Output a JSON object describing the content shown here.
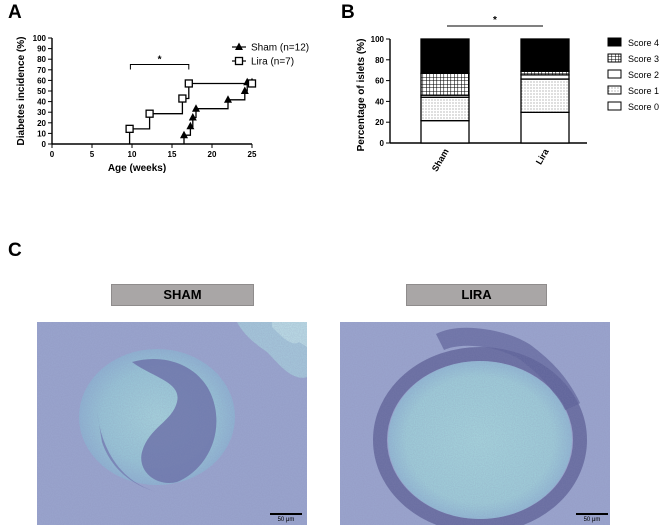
{
  "panels": {
    "a": {
      "letter": "A"
    },
    "b": {
      "letter": "B"
    },
    "c": {
      "letter": "C"
    }
  },
  "chart_data": [
    {
      "type": "line",
      "subtype": "step",
      "title": "",
      "xlabel": "Age (weeks)",
      "ylabel": "Diabetes incidence (%)",
      "xlim": [
        0,
        25
      ],
      "ylim": [
        0,
        100
      ],
      "x_ticks": [
        0,
        5,
        10,
        15,
        20,
        25
      ],
      "y_ticks": [
        0,
        10,
        20,
        30,
        40,
        50,
        60,
        70,
        80,
        90,
        100
      ],
      "legend_position": "top-right",
      "significance": "*",
      "series": [
        {
          "name": "Sham (n=12)",
          "marker": "triangle",
          "steps": [
            [
              16.5,
              0
            ],
            [
              16.5,
              8.3
            ],
            [
              17.3,
              16.7
            ],
            [
              17.6,
              25
            ],
            [
              18,
              33.3
            ],
            [
              22,
              41.7
            ],
            [
              24.1,
              50
            ],
            [
              24.4,
              58.3
            ],
            [
              25,
              58.3
            ]
          ]
        },
        {
          "name": "Lira (n=7)",
          "marker": "square",
          "steps": [
            [
              9.7,
              0
            ],
            [
              9.7,
              14.3
            ],
            [
              12.2,
              28.6
            ],
            [
              16.3,
              42.9
            ],
            [
              17.1,
              57.1
            ],
            [
              25,
              57.1
            ]
          ]
        }
      ]
    },
    {
      "type": "bar",
      "subtype": "stacked-100",
      "title": "",
      "xlabel": "",
      "ylabel": "Percentage of islets (%)",
      "ylim": [
        0,
        100
      ],
      "y_ticks": [
        0,
        20,
        40,
        60,
        80,
        100
      ],
      "categories": [
        "Sham",
        "Lira"
      ],
      "legend_position": "right",
      "significance": "*",
      "series": [
        {
          "name": "Score 0",
          "pattern": "white",
          "values": [
            21.5,
            29.5
          ]
        },
        {
          "name": "Score 1",
          "pattern": "dots",
          "values": [
            22.5,
            32
          ]
        },
        {
          "name": "Score 2",
          "pattern": "white",
          "values": [
            2,
            4
          ]
        },
        {
          "name": "Score 3",
          "pattern": "grid",
          "values": [
            21,
            3.5
          ]
        },
        {
          "name": "Score 4",
          "pattern": "black",
          "values": [
            33,
            31
          ]
        }
      ]
    }
  ],
  "micrographs": {
    "sham": {
      "label": "SHAM",
      "scale": "50 μm"
    },
    "lira": {
      "label": "LIRA",
      "scale": "50 μm"
    }
  },
  "colors": {
    "tissue": "#9ca8d0",
    "islet": "#9fd2dc",
    "infiltrate": "#5b5f9a",
    "banner": "#a9a6a6"
  }
}
